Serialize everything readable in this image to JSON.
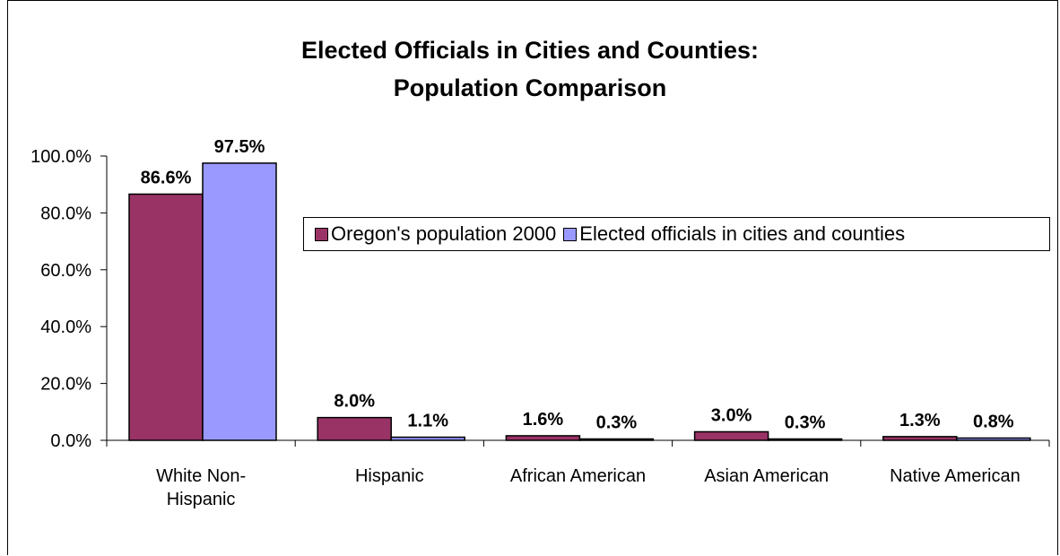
{
  "chart_data": {
    "type": "bar",
    "title": "Elected Officials in Cities and Counties:",
    "subtitle": "Population Comparison",
    "categories": [
      "White Non-Hispanic",
      "Hispanic",
      "African American",
      "Asian American",
      "Native American"
    ],
    "category_lines": [
      [
        "White Non-",
        "Hispanic"
      ],
      [
        "Hispanic"
      ],
      [
        "African American"
      ],
      [
        "Asian American"
      ],
      [
        "Native American"
      ]
    ],
    "series": [
      {
        "name": "Oregon's population 2000",
        "values": [
          86.6,
          8.0,
          1.6,
          3.0,
          1.3
        ],
        "labels": [
          "86.6%",
          "8.0%",
          "1.6%",
          "3.0%",
          "1.3%"
        ],
        "color": "#993366"
      },
      {
        "name": "Elected officials in cities and counties",
        "values": [
          97.5,
          1.1,
          0.3,
          0.3,
          0.8
        ],
        "labels": [
          "97.5%",
          "1.1%",
          "0.3%",
          "0.3%",
          "0.8%"
        ],
        "color": "#9999ff"
      }
    ],
    "ylim": [
      0,
      100
    ],
    "yticks": [
      "0.0%",
      "20.0%",
      "40.0%",
      "60.0%",
      "80.0%",
      "100.0%"
    ],
    "ytick_values": [
      0,
      20,
      40,
      60,
      80,
      100
    ],
    "xlabel": "",
    "ylabel": "",
    "grid": false,
    "legend_position": "right"
  }
}
